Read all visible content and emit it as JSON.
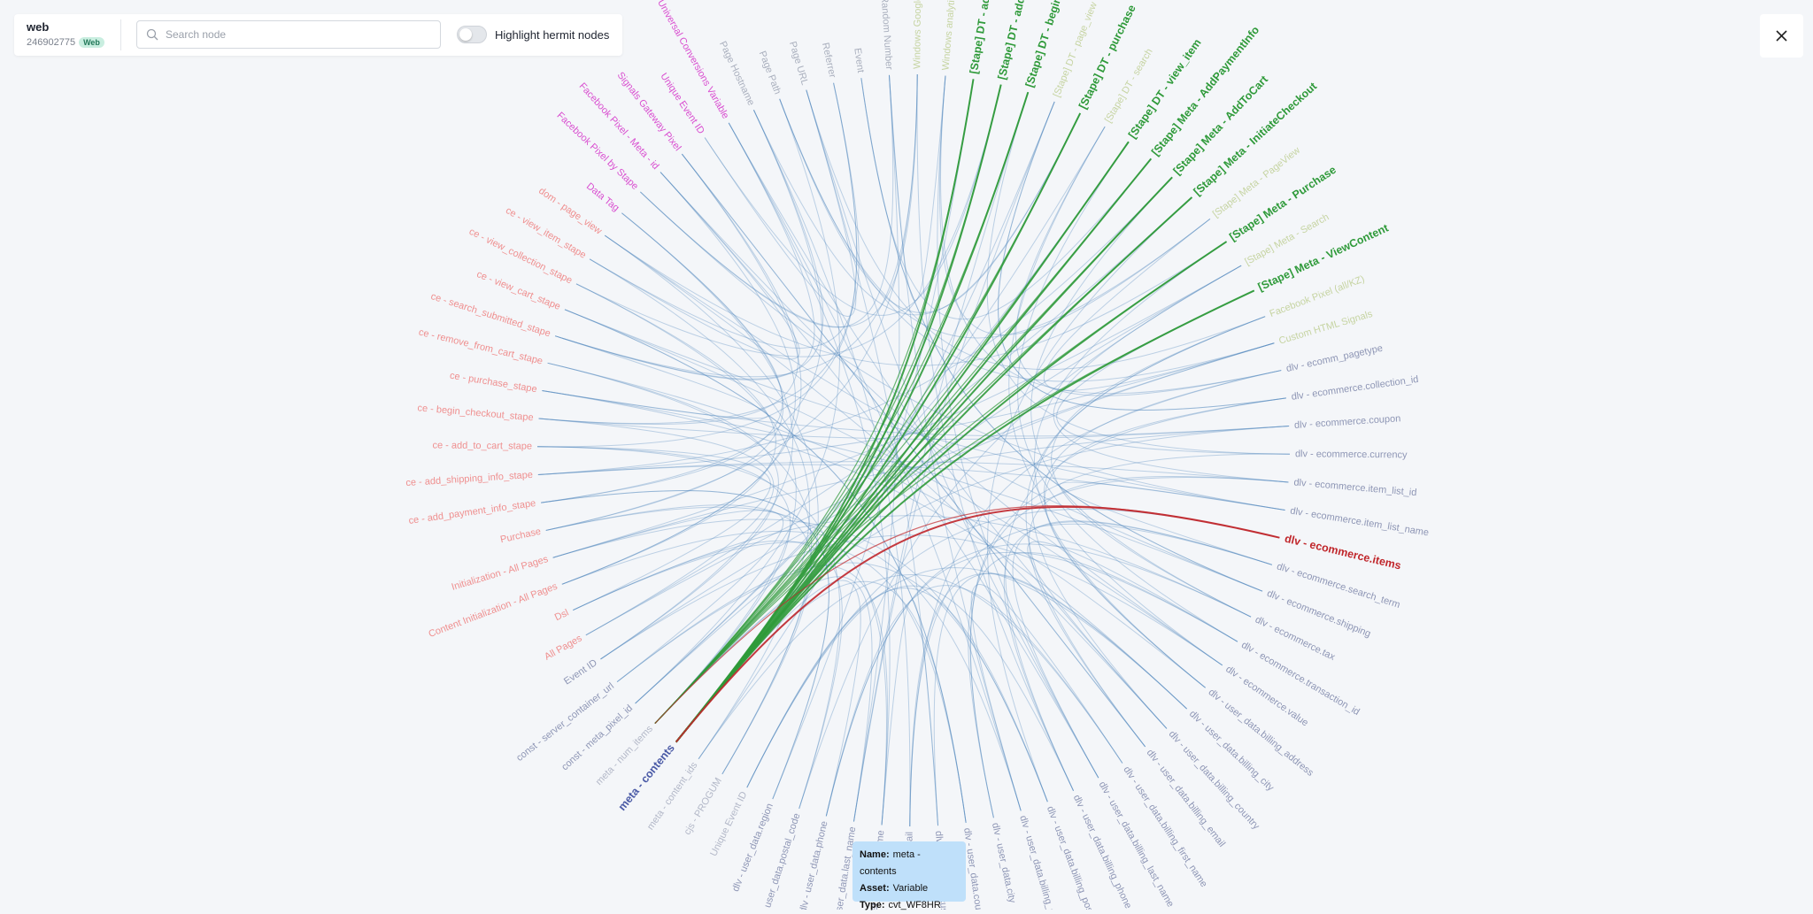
{
  "header": {
    "title": "web",
    "id": "246902775",
    "badge": "Web"
  },
  "search": {
    "placeholder": "Search node"
  },
  "toggle": {
    "label": "Highlight hermit nodes"
  },
  "graph": {
    "nodes": [
      {
        "label": "Event",
        "color": "#a9afbd"
      },
      {
        "label": "Random Number",
        "color": "#a9afbd"
      },
      {
        "label": "Windows Google tag",
        "color": "#c6d4a2"
      },
      {
        "label": "Windows analytics ID",
        "color": "#c6d4a2"
      },
      {
        "label": "[Stape] DT - add_payment_info",
        "color": "#2f9a3a",
        "bold": true
      },
      {
        "label": "[Stape] DT - add_to_cart",
        "color": "#2f9a3a",
        "bold": true
      },
      {
        "label": "[Stape] DT - begin_checkout",
        "color": "#2f9a3a",
        "bold": true
      },
      {
        "label": "[Stape] DT - page_view",
        "color": "#c6d4a2"
      },
      {
        "label": "[Stape] DT - purchase",
        "color": "#2f9a3a",
        "bold": true
      },
      {
        "label": "[Stape] DT - search",
        "color": "#c6d4a2"
      },
      {
        "label": "[Stape] DT - view_item",
        "color": "#2f9a3a",
        "bold": true
      },
      {
        "label": "[Stape] Meta - AddPaymentInfo",
        "color": "#2f9a3a",
        "bold": true
      },
      {
        "label": "[Stape] Meta - AddToCart",
        "color": "#2f9a3a",
        "bold": true
      },
      {
        "label": "[Stape] Meta - InitiateCheckout",
        "color": "#2f9a3a",
        "bold": true
      },
      {
        "label": "[Stape] Meta - PageView",
        "color": "#c6d4a2"
      },
      {
        "label": "[Stape] Meta - Purchase",
        "color": "#2f9a3a",
        "bold": true
      },
      {
        "label": "[Stape] Meta - Search",
        "color": "#c6d4a2"
      },
      {
        "label": "[Stape] Meta - ViewContent",
        "color": "#2f9a3a",
        "bold": true
      },
      {
        "label": "Facebook Pixel (all/KZ)",
        "color": "#c6d4a2"
      },
      {
        "label": "Custom HTML Signals",
        "color": "#c6d4a2"
      },
      {
        "label": "dlv - ecomm_pagetype",
        "color": "#8e96b5"
      },
      {
        "label": "dlv - ecommerce.collection_id",
        "color": "#8e96b5"
      },
      {
        "label": "dlv - ecommerce.coupon",
        "color": "#8e96b5"
      },
      {
        "label": "dlv - ecommerce.currency",
        "color": "#8e96b5"
      },
      {
        "label": "dlv - ecommerce.item_list_id",
        "color": "#8e96b5"
      },
      {
        "label": "dlv - ecommerce.item_list_name",
        "color": "#8e96b5"
      },
      {
        "label": "dlv - ecommerce.items",
        "color": "#c0262b",
        "bold": true
      },
      {
        "label": "dlv - ecommerce.search_term",
        "color": "#8e96b5"
      },
      {
        "label": "dlv - ecommerce.shipping",
        "color": "#8e96b5"
      },
      {
        "label": "dlv - ecommerce.tax",
        "color": "#8e96b5"
      },
      {
        "label": "dlv - ecommerce.transaction_id",
        "color": "#8e96b5"
      },
      {
        "label": "dlv - ecommerce.value",
        "color": "#8e96b5"
      },
      {
        "label": "dlv - user_data.billing_address",
        "color": "#8e96b5"
      },
      {
        "label": "dlv - user_data.billing_city",
        "color": "#8e96b5"
      },
      {
        "label": "dlv - user_data.billing_country",
        "color": "#8e96b5"
      },
      {
        "label": "dlv - user_data.billing_email",
        "color": "#8e96b5"
      },
      {
        "label": "dlv - user_data.billing_first_name",
        "color": "#8e96b5"
      },
      {
        "label": "dlv - user_data.billing_last_name",
        "color": "#8e96b5"
      },
      {
        "label": "dlv - user_data.billing_phone",
        "color": "#8e96b5"
      },
      {
        "label": "dlv - user_data.billing_postcode",
        "color": "#8e96b5"
      },
      {
        "label": "dlv - user_data.billing_state",
        "color": "#8e96b5"
      },
      {
        "label": "dlv - user_data.city",
        "color": "#8e96b5"
      },
      {
        "label": "dlv - user_data.country",
        "color": "#8e96b5"
      },
      {
        "label": "dlv - user_data.customer_id",
        "color": "#8e96b5"
      },
      {
        "label": "dlv - user_data.email",
        "color": "#8e96b5"
      },
      {
        "label": "dlv - user_data.first_name",
        "color": "#8e96b5"
      },
      {
        "label": "dlv - user_data.last_name",
        "color": "#8e96b5"
      },
      {
        "label": "dlv - user_data.phone",
        "color": "#8e96b5"
      },
      {
        "label": "dlv - user_data.postal_code",
        "color": "#8e96b5"
      },
      {
        "label": "dlv - user_data.region",
        "color": "#8e96b5"
      },
      {
        "label": "Unique Event ID",
        "color": "#b3b8c8"
      },
      {
        "label": "cjs - PROGUM",
        "color": "#b3b8c8"
      },
      {
        "label": "meta - content_ids",
        "color": "#b3b8c8"
      },
      {
        "label": "meta - contents",
        "color": "#4a5aa6",
        "bold": true,
        "selected": true
      },
      {
        "label": "meta - num_items",
        "color": "#b3b8c8"
      },
      {
        "label": "const - meta_pixel_id",
        "color": "#8e96b5"
      },
      {
        "label": "const - server_container_url",
        "color": "#8e96b5"
      },
      {
        "label": "Event ID",
        "color": "#8e96b5"
      },
      {
        "label": "All Pages",
        "color": "#ef8f8f"
      },
      {
        "label": "Dsl",
        "color": "#ef8f8f"
      },
      {
        "label": "Content Initialization - All Pages",
        "color": "#ef8f8f"
      },
      {
        "label": "Initialization - All Pages",
        "color": "#ef8f8f"
      },
      {
        "label": "Purchase",
        "color": "#ef8f8f"
      },
      {
        "label": "ce - add_payment_info_stape",
        "color": "#ef8f8f"
      },
      {
        "label": "ce - add_shipping_info_stape",
        "color": "#ef8f8f"
      },
      {
        "label": "ce - add_to_cart_stape",
        "color": "#ef8f8f"
      },
      {
        "label": "ce - begin_checkout_stape",
        "color": "#ef8f8f"
      },
      {
        "label": "ce - purchase_stape",
        "color": "#ef8f8f"
      },
      {
        "label": "ce - remove_from_cart_stape",
        "color": "#ef8f8f"
      },
      {
        "label": "ce - search_submitted_stape",
        "color": "#ef8f8f"
      },
      {
        "label": "ce - view_cart_stape",
        "color": "#ef8f8f"
      },
      {
        "label": "ce - view_collection_stape",
        "color": "#ef8f8f"
      },
      {
        "label": "ce - view_item_stape",
        "color": "#ef8f8f"
      },
      {
        "label": "dom - page_view",
        "color": "#ef8f8f"
      },
      {
        "label": "Data Tag",
        "color": "#d94fd0"
      },
      {
        "label": "Facebook Pixel by Stape",
        "color": "#d94fd0"
      },
      {
        "label": "Facebook Pixel - Meta - id",
        "color": "#d94fd0"
      },
      {
        "label": "Signals Gateway Pixel",
        "color": "#d94fd0"
      },
      {
        "label": "Unique Event ID",
        "color": "#d94fd0"
      },
      {
        "label": "Universal Conversions Variable",
        "color": "#d94fd0"
      },
      {
        "label": "Page Hostname",
        "color": "#a9afbd"
      },
      {
        "label": "Page Path",
        "color": "#a9afbd"
      },
      {
        "label": "Page URL",
        "color": "#a9afbd"
      },
      {
        "label": "Referrer",
        "color": "#a9afbd"
      }
    ]
  },
  "tooltip": {
    "rows": [
      {
        "key": "Name:",
        "value": "meta - contents"
      },
      {
        "key": "Asset:",
        "value": "Variable"
      },
      {
        "key": "Type:",
        "value": "cvt_WF8HR"
      }
    ]
  }
}
